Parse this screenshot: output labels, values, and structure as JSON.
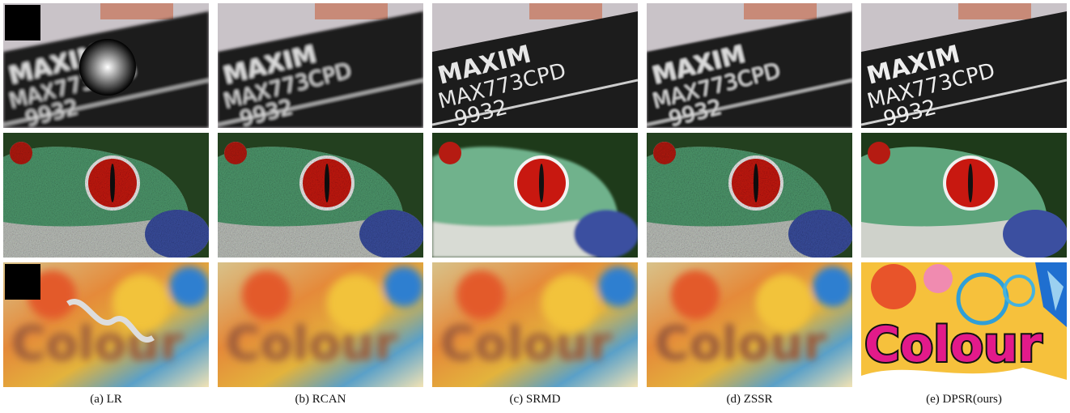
{
  "columns": [
    {
      "caption": "(a) LR",
      "method": "LR"
    },
    {
      "caption": "(b) RCAN",
      "method": "RCAN"
    },
    {
      "caption": "(c) SRMD",
      "method": "SRMD"
    },
    {
      "caption": "(d) ZSSR",
      "method": "ZSSR"
    },
    {
      "caption": "(e) DPSR(ours)",
      "method": "DPSR(ours)"
    }
  ],
  "rows": [
    {
      "scene": "chip",
      "text_line1": "MAXIM",
      "text_line2": "MAX773CPD",
      "text_line3": "9932"
    },
    {
      "scene": "frog"
    },
    {
      "scene": "colour",
      "text": "Colour"
    }
  ],
  "colors": {
    "chip_body": "#1a1a1a",
    "chip_text": "#d9d9d9",
    "frog_green": "#4f9a6e",
    "frog_eye": "#c81810",
    "background_dark": "#1e3a1a"
  }
}
